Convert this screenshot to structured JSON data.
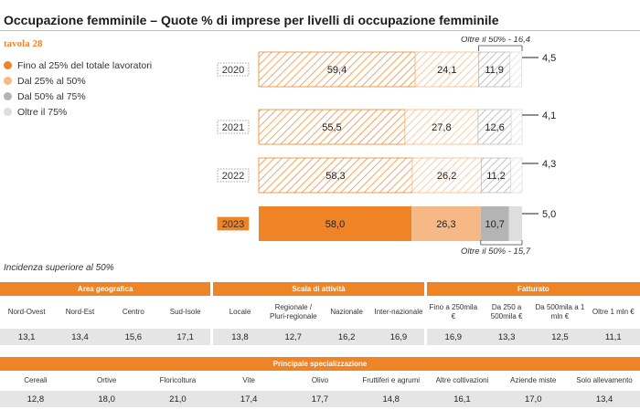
{
  "title": "Occupazione femminile – Quote % di imprese per livelli di occupazione femminile",
  "tavola": "tavola 28",
  "colors": {
    "accent": "#ef8427",
    "light_orange": "#f6b985",
    "gray": "#b4b4b4",
    "light_gray": "#dedede"
  },
  "chart_data": {
    "type": "bar",
    "orientation": "horizontal-stacked",
    "title": "Occupazione femminile – Quote % di imprese per livelli di occupazione femminile",
    "categories": [
      "2020",
      "2021",
      "2022",
      "2023"
    ],
    "series": [
      {
        "name": "Fino al 25% del totale lavoratori",
        "values": [
          59.4,
          55.5,
          58.3,
          58.0
        ],
        "labels": [
          "59,4",
          "55,5",
          "58,3",
          "58,0"
        ]
      },
      {
        "name": "Dal 25% al 50%",
        "values": [
          24.1,
          27.8,
          26.2,
          26.3
        ],
        "labels": [
          "24,1",
          "27,8",
          "26,2",
          "26,3"
        ]
      },
      {
        "name": "Dal 50% al 75%",
        "values": [
          11.9,
          12.6,
          11.2,
          10.7
        ],
        "labels": [
          "11,9",
          "12,6",
          "11,2",
          "10,7"
        ]
      },
      {
        "name": "Oltre il 75%",
        "values": [
          4.5,
          4.1,
          4.3,
          5.0
        ],
        "labels": [
          "4,5",
          "4,1",
          "4,3",
          "5,0"
        ]
      }
    ],
    "highlight_category": "2023",
    "annotations": {
      "top": "Oltre il 50% - 16,4",
      "bottom": "Oltre il 50% - 15,7"
    },
    "legend": [
      {
        "label": "Fino al 25% del totale lavoratori",
        "color": "#ef8427"
      },
      {
        "label": "Dal 25% al 50%",
        "color": "#f6b985"
      },
      {
        "label": "Dal 50% al 75%",
        "color": "#b4b4b4"
      },
      {
        "label": "Oltre il 75%",
        "color": "#dedede"
      }
    ],
    "legend_position": "left",
    "xlim": [
      0,
      100
    ],
    "grid": false
  },
  "incidenza_label": "Incidenza superiore al 50%",
  "tables": [
    {
      "groups": [
        {
          "title": "Area geografica",
          "columns": [
            {
              "label": "Nord-Ovest",
              "value": "13,1"
            },
            {
              "label": "Nord-Est",
              "value": "13,4"
            },
            {
              "label": "Centro",
              "value": "15,6"
            },
            {
              "label": "Sud-Isole",
              "value": "17,1"
            }
          ]
        },
        {
          "title": "Scala di attività",
          "columns": [
            {
              "label": "Locale",
              "value": "13,8"
            },
            {
              "label": "Regionale / Pluri-regionale",
              "value": "12,7"
            },
            {
              "label": "Nazionale",
              "value": "16,2"
            },
            {
              "label": "Inter-nazionale",
              "value": "16,9"
            }
          ]
        },
        {
          "title": "Fatturato",
          "columns": [
            {
              "label": "Fino a 250mila €",
              "value": "16,9"
            },
            {
              "label": "Da 250 a 500mila €",
              "value": "13,3"
            },
            {
              "label": "Da 500mila a 1 mln €",
              "value": "12,5"
            },
            {
              "label": "Oltre 1 mln €",
              "value": "11,1"
            }
          ]
        }
      ]
    },
    {
      "groups": [
        {
          "title": "Principale specializzazione",
          "columns": [
            {
              "label": "Cereali",
              "value": "12,8"
            },
            {
              "label": "Ortive",
              "value": "18,0"
            },
            {
              "label": "Floricoltura",
              "value": "21,0"
            },
            {
              "label": "Vite",
              "value": "17,4"
            },
            {
              "label": "Olivo",
              "value": "17,7"
            },
            {
              "label": "Fruttiferi e agrumi",
              "value": "14,8"
            },
            {
              "label": "Altre coltivazioni",
              "value": "16,1"
            },
            {
              "label": "Aziende miste",
              "value": "17,0"
            },
            {
              "label": "Solo allevamento",
              "value": "13,4"
            }
          ]
        }
      ]
    }
  ]
}
